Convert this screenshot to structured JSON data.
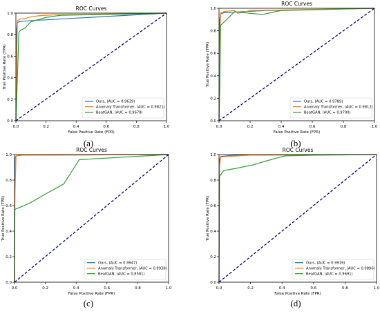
{
  "chart_data": [
    {
      "panel": "(a)",
      "type": "line",
      "title": "ROC Curves",
      "xlabel": "False Positive Rate (FPR)",
      "ylabel": "True Positive Rate (TPR)",
      "xlim": [
        0,
        1
      ],
      "ylim": [
        0,
        1
      ],
      "xticks": [
        "0.0",
        "0.2",
        "0.4",
        "0.6",
        "0.8",
        "1.0"
      ],
      "yticks": [
        "0.0",
        "0.2",
        "0.4",
        "0.6",
        "0.8",
        "1.0"
      ],
      "legend_position": "bottom-right",
      "grid": false,
      "series": [
        {
          "name": "Ours, (AUC = 0.9639)",
          "color": "#1f77b4",
          "x": [
            0,
            0.005,
            0.01,
            0.02,
            0.05,
            0.1,
            1.0
          ],
          "y": [
            0,
            0.85,
            0.91,
            0.92,
            0.925,
            0.93,
            1.0
          ]
        },
        {
          "name": "Anomaly Transformer, (AUC = 0.9821)",
          "color": "#ff7f0e",
          "x": [
            0,
            0.005,
            0.01,
            0.03,
            0.06,
            0.1,
            0.15,
            0.2,
            0.28,
            1.0
          ],
          "y": [
            0,
            0.5,
            0.93,
            0.945,
            0.95,
            0.965,
            0.975,
            0.98,
            0.985,
            1.0
          ]
        },
        {
          "name": "BeatGAN, (AUC = 0.9678)",
          "color": "#2ca02c",
          "x": [
            0,
            0.005,
            0.02,
            0.03,
            0.06,
            0.1,
            0.2,
            0.3,
            0.5,
            1.0
          ],
          "y": [
            0,
            0.2,
            0.82,
            0.84,
            0.86,
            0.92,
            0.96,
            0.98,
            0.985,
            1.0
          ]
        },
        {
          "name": "",
          "color": "#000080",
          "dashed": true,
          "x": [
            0,
            1
          ],
          "y": [
            0,
            1
          ]
        }
      ]
    },
    {
      "panel": "(b)",
      "type": "line",
      "title": "ROC Curves",
      "xlabel": "False Positive Rate (FPR)",
      "ylabel": "True Positive Rate (TPR)",
      "xlim": [
        0,
        1
      ],
      "ylim": [
        0,
        1
      ],
      "xticks": [
        "0.0",
        "0.2",
        "0.4",
        "0.6",
        "0.8",
        "1.0"
      ],
      "yticks": [
        "0.0",
        "0.2",
        "0.4",
        "0.6",
        "0.8",
        "1.0"
      ],
      "legend_position": "bottom-right",
      "grid": false,
      "series": [
        {
          "name": "Ours, (AUC = 0.9789)",
          "color": "#1f77b4",
          "x": [
            0,
            0.005,
            0.01,
            0.03,
            0.1,
            0.15,
            0.3,
            1.0
          ],
          "y": [
            0,
            0.9,
            0.95,
            0.96,
            0.965,
            0.97,
            0.98,
            1.0
          ]
        },
        {
          "name": "Anomaly Transformer, (AUC = 0.9812)",
          "color": "#ff7f0e",
          "x": [
            0,
            0.005,
            0.01,
            0.03,
            0.06,
            0.1,
            0.12,
            0.2,
            0.4,
            1.0
          ],
          "y": [
            0,
            0.6,
            0.96,
            0.97,
            0.975,
            0.98,
            0.955,
            0.98,
            0.985,
            1.0
          ]
        },
        {
          "name": "BeatGAN, (AUC = 0.9700)",
          "color": "#2ca02c",
          "x": [
            0,
            0.005,
            0.01,
            0.02,
            0.05,
            0.1,
            0.2,
            0.28,
            0.4,
            1.0
          ],
          "y": [
            0,
            0.3,
            0.85,
            0.86,
            0.9,
            0.97,
            0.955,
            0.945,
            0.98,
            1.0
          ]
        },
        {
          "name": "",
          "color": "#000080",
          "dashed": true,
          "x": [
            0,
            1
          ],
          "y": [
            0,
            1
          ]
        }
      ]
    },
    {
      "panel": "(c)",
      "type": "line",
      "title": "ROC Curves",
      "xlabel": "False Positive Rate (FPR)",
      "ylabel": "True Positive Rate (TPR)",
      "xlim": [
        0,
        1
      ],
      "ylim": [
        0,
        1
      ],
      "xticks": [
        "0.0",
        "0.2",
        "0.4",
        "0.6",
        "0.8",
        "1.0"
      ],
      "yticks": [
        "0.0",
        "0.2",
        "0.4",
        "0.6",
        "0.8",
        "1.0"
      ],
      "legend_position": "bottom-right",
      "grid": false,
      "series": [
        {
          "name": "Ours, (AUC = 0.9947)",
          "color": "#1f77b4",
          "x": [
            0,
            0.003,
            0.01,
            0.05,
            1.0
          ],
          "y": [
            0,
            0.97,
            0.99,
            0.995,
            1.0
          ]
        },
        {
          "name": "Anomaly Transformer, (AUC = 0.9938)",
          "color": "#ff7f0e",
          "x": [
            0,
            0.003,
            0.01,
            0.03,
            1.0
          ],
          "y": [
            0,
            0.7,
            0.99,
            0.995,
            1.0
          ]
        },
        {
          "name": "BeatGAN, (AUC = 0.8581)",
          "color": "#2ca02c",
          "x": [
            0,
            0.002,
            0.1,
            0.2,
            0.32,
            0.42,
            1.0
          ],
          "y": [
            0,
            0.57,
            0.62,
            0.69,
            0.77,
            0.96,
            1.0
          ]
        },
        {
          "name": "",
          "color": "#000080",
          "dashed": true,
          "x": [
            0,
            1
          ],
          "y": [
            0,
            1
          ]
        }
      ]
    },
    {
      "panel": "(d)",
      "type": "line",
      "title": "ROC Curves",
      "xlabel": "False Positive Rate (FPR)",
      "ylabel": "True Positive Rate (TPR)",
      "xlim": [
        0,
        1
      ],
      "ylim": [
        0,
        1
      ],
      "xticks": [
        "0.0",
        "0.2",
        "0.4",
        "0.6",
        "0.8",
        "1.0"
      ],
      "yticks": [
        "0.0",
        "0.2",
        "0.4",
        "0.6",
        "0.8",
        "1.0"
      ],
      "legend_position": "bottom-right",
      "grid": false,
      "series": [
        {
          "name": "Ours, (AUC = 0.9919)",
          "color": "#1f77b4",
          "x": [
            0,
            0.003,
            0.01,
            0.05,
            0.1,
            1.0
          ],
          "y": [
            0,
            0.96,
            0.985,
            0.99,
            0.995,
            1.0
          ]
        },
        {
          "name": "Anomaly Transformer, (AUC = 0.9896)",
          "color": "#ff7f0e",
          "x": [
            0,
            0.003,
            0.01,
            0.05,
            0.2,
            1.0
          ],
          "y": [
            0,
            0.9,
            0.98,
            0.985,
            0.995,
            1.0
          ]
        },
        {
          "name": "BeatGAN, (AUC = 0.9691)",
          "color": "#2ca02c",
          "x": [
            0,
            0.003,
            0.01,
            0.03,
            0.1,
            0.22,
            0.3,
            0.42,
            0.6,
            1.0
          ],
          "y": [
            0,
            0.83,
            0.84,
            0.875,
            0.89,
            0.92,
            0.95,
            0.99,
            0.995,
            1.0
          ]
        },
        {
          "name": "",
          "color": "#000080",
          "dashed": true,
          "x": [
            0,
            1
          ],
          "y": [
            0,
            1
          ]
        }
      ]
    }
  ]
}
